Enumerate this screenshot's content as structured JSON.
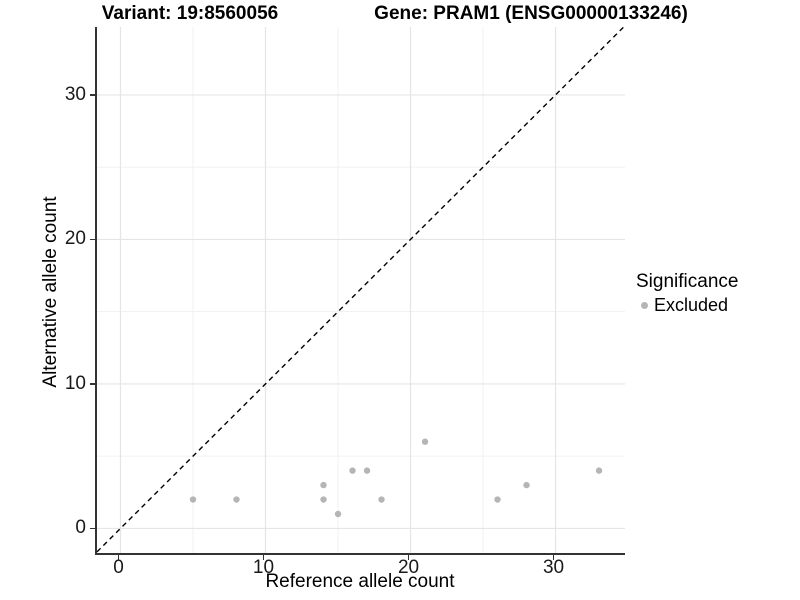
{
  "header": {
    "variant_title": "Variant: 19:8560056",
    "gene_title": "Gene: PRAM1 (ENSG00000133246)"
  },
  "axes": {
    "x": {
      "title": "Reference allele count",
      "tick_labels": [
        "0",
        "10",
        "20",
        "30"
      ]
    },
    "y": {
      "title": "Alternative allele count",
      "tick_labels": [
        "0",
        "10",
        "20",
        "30"
      ]
    }
  },
  "legend": {
    "title": "Significance",
    "items": [
      {
        "label": "Excluded",
        "color": "#b5b5b5"
      }
    ]
  },
  "chart_data": {
    "type": "scatter",
    "title": "Variant: 19:8560056   Gene: PRAM1 (ENSG00000133246)",
    "xlabel": "Reference allele count",
    "ylabel": "Alternative allele count",
    "series": [
      {
        "name": "Excluded",
        "color": "#b5b5b5",
        "points": [
          [
            5,
            2
          ],
          [
            8,
            2
          ],
          [
            14,
            2
          ],
          [
            14,
            3
          ],
          [
            15,
            1
          ],
          [
            16,
            4
          ],
          [
            17,
            4
          ],
          [
            18,
            2
          ],
          [
            21,
            6
          ],
          [
            26,
            2
          ],
          [
            28,
            3
          ],
          [
            33,
            4
          ]
        ]
      }
    ],
    "reference_line": {
      "type": "identity",
      "style": "dashed",
      "color": "#000000"
    },
    "xlim": [
      -1.62,
      34.79
    ],
    "ylim": [
      -1.7,
      34.7
    ],
    "x_major_ticks": [
      0,
      10,
      20,
      30
    ],
    "y_major_ticks": [
      0,
      10,
      20,
      30
    ],
    "x_minor_ticks": [
      5,
      15,
      25
    ],
    "y_minor_ticks": [
      5,
      15,
      25
    ],
    "grid": {
      "major_color": "#e5e5e5",
      "minor_color": "#f1f1f1"
    },
    "point_radius": 3.2,
    "legend_position": "right"
  }
}
